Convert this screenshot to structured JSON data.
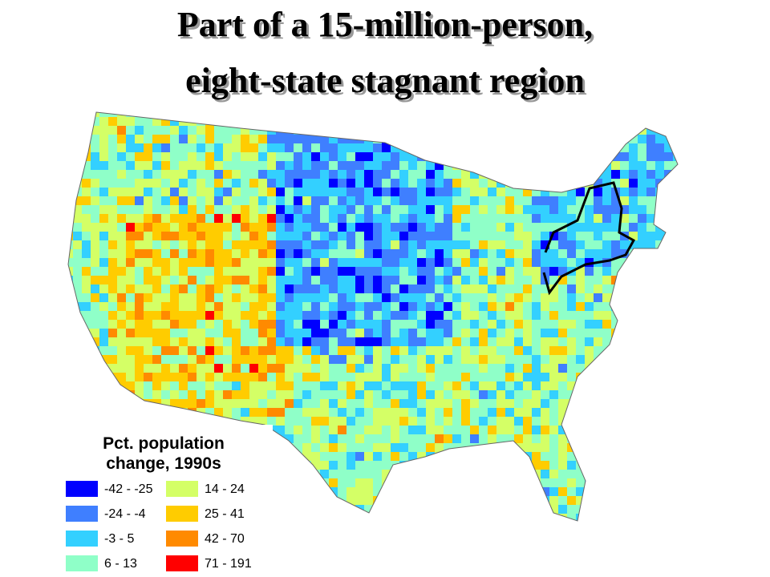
{
  "title": {
    "lines": [
      "Part of  a 15-million-person,",
      "eight-state stagnant region"
    ]
  },
  "legend": {
    "title_lines": [
      "Pct. population",
      "change, 1990s"
    ],
    "items": [
      {
        "label": "-42 - -25",
        "color": "#0000ff"
      },
      {
        "label": "-24 - -4",
        "color": "#3f7fff"
      },
      {
        "label": "-3 - 5",
        "color": "#33d0ff"
      },
      {
        "label": "6 - 13",
        "color": "#8fffc8"
      },
      {
        "label": "14 - 24",
        "color": "#d4ff66"
      },
      {
        "label": "25 - 41",
        "color": "#ffcc00"
      },
      {
        "label": "42 - 70",
        "color": "#ff8a00"
      },
      {
        "label": "71 - 191",
        "color": "#ff0000"
      }
    ]
  }
}
